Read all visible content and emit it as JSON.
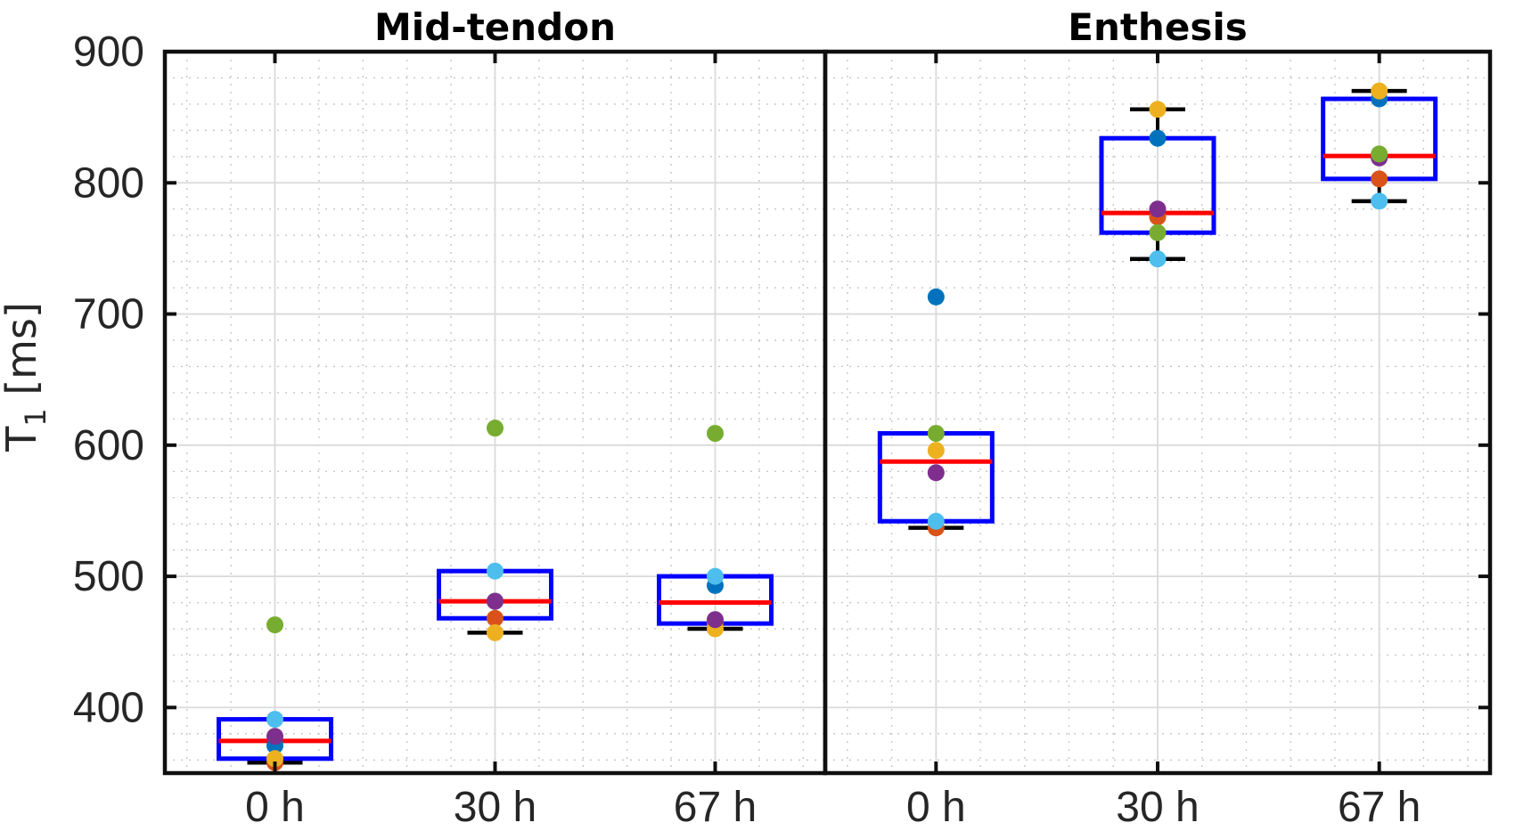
{
  "chart_data": {
    "type": "box",
    "description": "Box plots with overlaid per-subject data points (T1 relaxation time at three time points) for two tendon regions",
    "ylabel": "T_1 [ms]",
    "ylabel_parts": {
      "base": "T",
      "subscript": "1",
      "unit": " [ms]"
    },
    "ylim": [
      350,
      900
    ],
    "yticks": [
      400,
      500,
      600,
      700,
      800,
      900
    ],
    "y_minor_step": 20,
    "x_categories": [
      "0 h",
      "30 h",
      "67 h"
    ],
    "grid": "major solid, minor dotted, both axes",
    "legend_position": "none",
    "point_colors": [
      "#0072BD",
      "#D95319",
      "#EDB120",
      "#7E2F8E",
      "#77AC30",
      "#4DBEEE"
    ],
    "point_color_names": [
      "blue",
      "red-orange",
      "yellow",
      "purple",
      "green",
      "cyan"
    ],
    "panels": [
      {
        "title": "Mid-tendon",
        "groups": [
          {
            "label": "0 h",
            "points": [
              371,
              358,
              361,
              378,
              463,
              391
            ],
            "median": 374.5,
            "q1": 361,
            "q3": 391,
            "whisker_low": 358,
            "whisker_high": 391,
            "outliers": [
              463
            ]
          },
          {
            "label": "30 h",
            "points": [
              481,
              468,
              457,
              481,
              613,
              504
            ],
            "median": 481,
            "q1": 468,
            "q3": 504,
            "whisker_low": 457,
            "whisker_high": 504,
            "outliers": [
              613
            ]
          },
          {
            "label": "67 h",
            "points": [
              493,
              464,
              460,
              467,
              609,
              500
            ],
            "median": 480,
            "q1": 464,
            "q3": 500,
            "whisker_low": 460,
            "whisker_high": 500,
            "outliers": [
              609
            ]
          }
        ]
      },
      {
        "title": "Enthesis",
        "groups": [
          {
            "label": "0 h",
            "points": [
              713,
              537,
              596,
              579,
              609,
              542
            ],
            "median": 587.5,
            "q1": 542,
            "q3": 609,
            "whisker_low": 537,
            "whisker_high": 609,
            "outliers": [
              713
            ]
          },
          {
            "label": "30 h",
            "points": [
              834,
              774,
              856,
              780,
              762,
              742
            ],
            "median": 777,
            "q1": 762,
            "q3": 834,
            "whisker_low": 742,
            "whisker_high": 856,
            "outliers": []
          },
          {
            "label": "67 h",
            "points": [
              864,
              803,
              870,
              819,
              822,
              786
            ],
            "median": 820.5,
            "q1": 803,
            "q3": 864,
            "whisker_low": 786,
            "whisker_high": 870,
            "outliers": []
          }
        ]
      }
    ]
  },
  "styles": {
    "background": "#FFFFFF",
    "box_color": "#0000FF",
    "median_color": "#FF0000",
    "whisker_color": "#000000",
    "frame_color": "#0F0F0F",
    "grid_major_color": "#DADADA",
    "grid_minor_color": "#C6C6C6",
    "tick_label_color": "#262626",
    "title_color": "#000000"
  }
}
